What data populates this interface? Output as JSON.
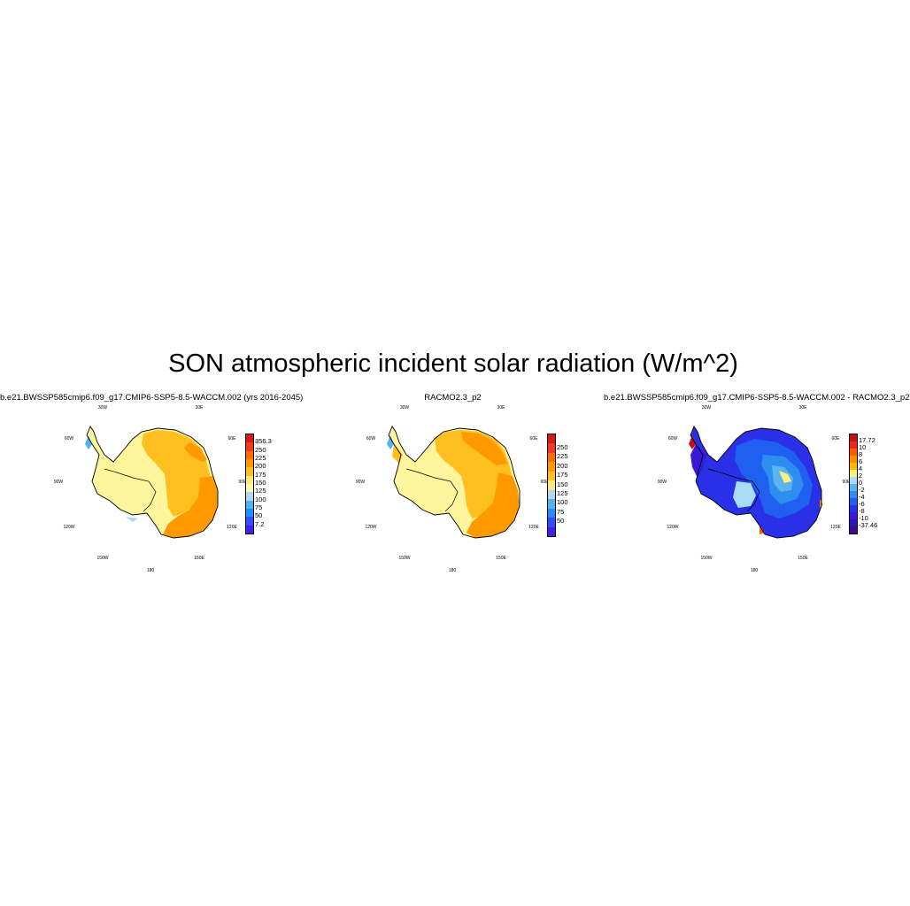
{
  "figure": {
    "title": "SON atmospheric incident solar radiation (W/m^2)"
  },
  "panels": [
    {
      "title": "b.e21.BWSSP585cmip6.f09_g17.CMIP6-SSP5-8.5-WACCM.002 (yrs 2016-2045)",
      "lon_labels": [
        "30W",
        "30E",
        "60W",
        "60E",
        "90W",
        "90E",
        "120W",
        "120E",
        "150W",
        "150E",
        "180"
      ],
      "colorbar": {
        "labels": [
          "356.3",
          "250",
          "225",
          "200",
          "175",
          "150",
          "125",
          "100",
          "75",
          "50",
          "7.2"
        ],
        "colors": [
          "#d7191c",
          "#f03b20",
          "#ff6d00",
          "#ff9900",
          "#ffbf1f",
          "#ffe680",
          "#fff7b0",
          "#b0d8f0",
          "#4fb4f0",
          "#1e90ff",
          "#3050ff",
          "#4020f0"
        ]
      }
    },
    {
      "title": "RACMO2.3_p2",
      "lon_labels": [
        "30W",
        "30E",
        "60W",
        "60E",
        "90W",
        "90E",
        "120W",
        "120E",
        "150W",
        "150E",
        "180"
      ],
      "colorbar": {
        "labels": [
          "250",
          "225",
          "200",
          "175",
          "150",
          "125",
          "100",
          "75",
          "50"
        ],
        "colors": [
          "#d7191c",
          "#f03b20",
          "#ff6d00",
          "#ff9900",
          "#ffbf1f",
          "#ffe680",
          "#b0d8f0",
          "#4fb4f0",
          "#1e90ff",
          "#3050ff",
          "#4020f0"
        ]
      }
    },
    {
      "title": "b.e21.BWSSP585cmip6.f09_g17.CMIP6-SSP5-8.5-WACCM.002 - RACMO2.3_p2",
      "lon_labels": [
        "30W",
        "30E",
        "60W",
        "60E",
        "90W",
        "90E",
        "120W",
        "120E",
        "150W",
        "150E",
        "180"
      ],
      "colorbar": {
        "labels": [
          "17.72",
          "10",
          "8",
          "6",
          "4",
          "2",
          "0",
          "-2",
          "-4",
          "-6",
          "-8",
          "-10",
          "-37.46"
        ],
        "colors": [
          "#c4121a",
          "#e8281e",
          "#ff5a00",
          "#ff8c00",
          "#ffb800",
          "#fff07a",
          "#a8dcf5",
          "#5ab4f0",
          "#2d8ef0",
          "#1f60f0",
          "#2a30e8",
          "#3a18d8",
          "#3010b8",
          "#3a0a90"
        ]
      }
    }
  ]
}
